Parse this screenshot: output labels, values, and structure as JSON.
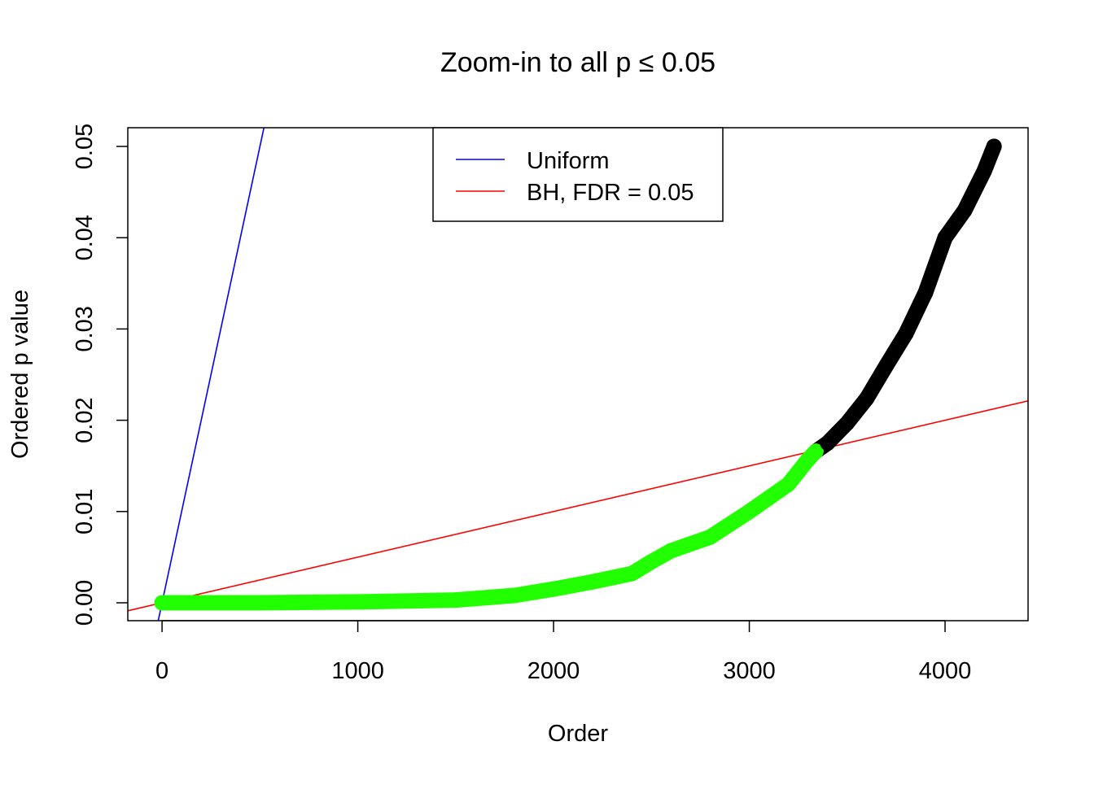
{
  "chart_data": {
    "type": "scatter",
    "title": "Zoom-in to all p ≤ 0.05",
    "xlabel": "Order",
    "ylabel": "Ordered p value",
    "xlim": [
      -175,
      4424
    ],
    "ylim": [
      -0.00196,
      0.05205
    ],
    "xticks": [
      0,
      1000,
      2000,
      3000,
      4000
    ],
    "xtick_labels": [
      "0",
      "1000",
      "2000",
      "3000",
      "4000"
    ],
    "yticks": [
      0,
      0.01,
      0.02,
      0.03,
      0.04,
      0.05
    ],
    "ytick_labels": [
      "0.00",
      "0.01",
      "0.02",
      "0.03",
      "0.04",
      "0.05"
    ],
    "grid": false,
    "legend": {
      "placement": "top",
      "entries": [
        {
          "label": "Uniform",
          "color": "#0000ff"
        },
        {
          "label": "BH, FDR = 0.05",
          "color": "#ff0000"
        }
      ]
    },
    "lines": [
      {
        "name": "Uniform",
        "color": "#0000ff",
        "intercept": 0,
        "slope": 0.0001
      },
      {
        "name": "BH, FDR = 0.05",
        "color": "#ff0000",
        "intercept": 0,
        "slope": 5e-06
      }
    ],
    "points": {
      "significant_color": "#22ff00",
      "nonsignificant_color": "#000000",
      "significant_cutoff_order": 3340,
      "x": [
        0,
        500,
        1000,
        1500,
        1800,
        2000,
        2200,
        2400,
        2500,
        2600,
        2800,
        3000,
        3100,
        3200,
        3300,
        3340,
        3400,
        3500,
        3600,
        3700,
        3800,
        3900,
        4000,
        4100,
        4200,
        4250
      ],
      "y": [
        0,
        0.0,
        0.0001,
        0.0003,
        0.0008,
        0.0015,
        0.0023,
        0.0032,
        0.0045,
        0.0057,
        0.0072,
        0.01,
        0.0115,
        0.013,
        0.0157,
        0.0166,
        0.0175,
        0.0197,
        0.0224,
        0.026,
        0.0295,
        0.034,
        0.04,
        0.043,
        0.0473,
        0.05
      ]
    }
  }
}
